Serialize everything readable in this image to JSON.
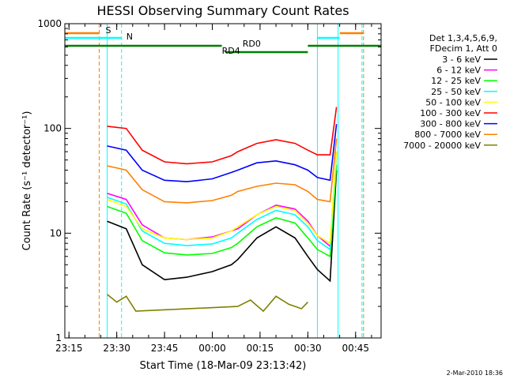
{
  "chart_data": {
    "type": "line",
    "title": "HESSI Observing Summary Count Rates",
    "xlabel": "Start Time (18-Mar-09 23:13:42)",
    "ylabel": "Count Rate (s⁻¹ detector⁻¹)",
    "yscale": "log",
    "xlim": [
      "23:13:42",
      "00:53:00"
    ],
    "ylim": [
      1,
      1000
    ],
    "x_ticks": [
      "23:15",
      "23:30",
      "23:45",
      "00:00",
      "00:15",
      "00:30",
      "00:45"
    ],
    "y_ticks": [
      "1",
      "10",
      "100",
      "1000"
    ],
    "date_label": "2-Mar-2010 18:36",
    "legend": {
      "placement": "right",
      "header": [
        "Det 1,3,4,5,6,9,",
        "FDecim 1, Att 0"
      ]
    },
    "series": [
      {
        "name": "3 - 6 keV",
        "color": "#000000",
        "x": [
          "23:27",
          "23:33",
          "23:38",
          "23:45",
          "23:52",
          "00:00",
          "00:06",
          "00:08",
          "00:14",
          "00:20",
          "00:26",
          "00:30",
          "00:33",
          "00:37",
          "00:39"
        ],
        "values": [
          13,
          11,
          5,
          3.6,
          3.8,
          4.3,
          5,
          5.6,
          9,
          11.5,
          9,
          6,
          4.5,
          3.5,
          40
        ]
      },
      {
        "name": "6 - 12 keV",
        "color": "#ff00ff",
        "x": [
          "23:27",
          "23:33",
          "23:38",
          "23:45",
          "23:52",
          "00:00",
          "00:06",
          "00:08",
          "00:14",
          "00:20",
          "00:26",
          "00:30",
          "00:33",
          "00:37",
          "00:39"
        ],
        "values": [
          24,
          21,
          12,
          9,
          8.7,
          9.2,
          10.5,
          11,
          15,
          18.5,
          17,
          13,
          9.5,
          7.5,
          60
        ]
      },
      {
        "name": "12 - 25 keV",
        "color": "#00ff00",
        "x": [
          "23:27",
          "23:33",
          "23:38",
          "23:45",
          "23:52",
          "00:00",
          "00:06",
          "00:08",
          "00:14",
          "00:20",
          "00:26",
          "00:30",
          "00:33",
          "00:37",
          "00:39"
        ],
        "values": [
          18,
          15.5,
          8.5,
          6.5,
          6.2,
          6.4,
          7.3,
          8,
          11.5,
          14,
          12.5,
          9,
          7,
          6,
          45
        ]
      },
      {
        "name": "25 - 50 keV",
        "color": "#00ffff",
        "x": [
          "23:27",
          "23:33",
          "23:38",
          "23:45",
          "23:52",
          "00:00",
          "00:06",
          "00:08",
          "00:14",
          "00:20",
          "00:26",
          "00:30",
          "00:33",
          "00:37",
          "00:39"
        ],
        "values": [
          22,
          19,
          10.5,
          8,
          7.6,
          7.9,
          9,
          10,
          13.5,
          16.5,
          15,
          11.5,
          8.5,
          7,
          55
        ]
      },
      {
        "name": "50 - 100 keV",
        "color": "#ffff00",
        "x": [
          "23:27",
          "23:33",
          "23:38",
          "23:45",
          "23:52",
          "00:00",
          "00:06",
          "00:08",
          "00:14",
          "00:20",
          "00:26",
          "00:30",
          "00:33",
          "00:37",
          "00:39"
        ],
        "values": [
          21,
          18,
          11,
          9,
          8.7,
          9,
          10.5,
          11.5,
          15,
          18,
          16.5,
          12.5,
          9.5,
          8,
          60
        ]
      },
      {
        "name": "100 - 300 keV",
        "color": "#ff0000",
        "x": [
          "23:27",
          "23:33",
          "23:38",
          "23:45",
          "23:52",
          "00:00",
          "00:06",
          "00:08",
          "00:14",
          "00:20",
          "00:26",
          "00:30",
          "00:33",
          "00:37",
          "00:39"
        ],
        "values": [
          105,
          100,
          62,
          48,
          46,
          48,
          55,
          60,
          72,
          78,
          72,
          62,
          56,
          56,
          160
        ]
      },
      {
        "name": "300 - 800 keV",
        "color": "#0000ff",
        "x": [
          "23:27",
          "23:33",
          "23:38",
          "23:45",
          "23:52",
          "00:00",
          "00:06",
          "00:08",
          "00:14",
          "00:20",
          "00:26",
          "00:30",
          "00:33",
          "00:37",
          "00:39"
        ],
        "values": [
          68,
          62,
          40,
          32,
          31,
          33,
          38,
          40,
          47,
          49,
          45,
          40,
          34,
          32,
          110
        ]
      },
      {
        "name": "800 - 7000 keV",
        "color": "#ff8000",
        "x": [
          "23:27",
          "23:33",
          "23:38",
          "23:45",
          "23:52",
          "00:00",
          "00:06",
          "00:08",
          "00:14",
          "00:20",
          "00:26",
          "00:30",
          "00:33",
          "00:37",
          "00:39"
        ],
        "values": [
          44,
          40,
          26,
          20,
          19.5,
          20.5,
          23,
          25,
          28,
          30,
          29,
          25,
          21,
          20,
          80
        ]
      },
      {
        "name": "7000 - 20000 keV",
        "color": "#808000",
        "x": [
          "23:27",
          "23:30",
          "23:33",
          "23:36",
          "00:08",
          "00:12",
          "00:16",
          "00:20",
          "00:24",
          "00:28",
          "00:30"
        ],
        "values": [
          2.6,
          2.2,
          2.5,
          1.8,
          2,
          2.3,
          1.8,
          2.5,
          2.1,
          1.9,
          2.2
        ]
      }
    ],
    "annotations": [
      {
        "text": "S",
        "color": "#ff8000"
      },
      {
        "text": "N",
        "color": "#00ffff"
      },
      {
        "text": "RD0",
        "color": "#008000"
      },
      {
        "text": "RD4",
        "color": "#008000"
      }
    ]
  }
}
